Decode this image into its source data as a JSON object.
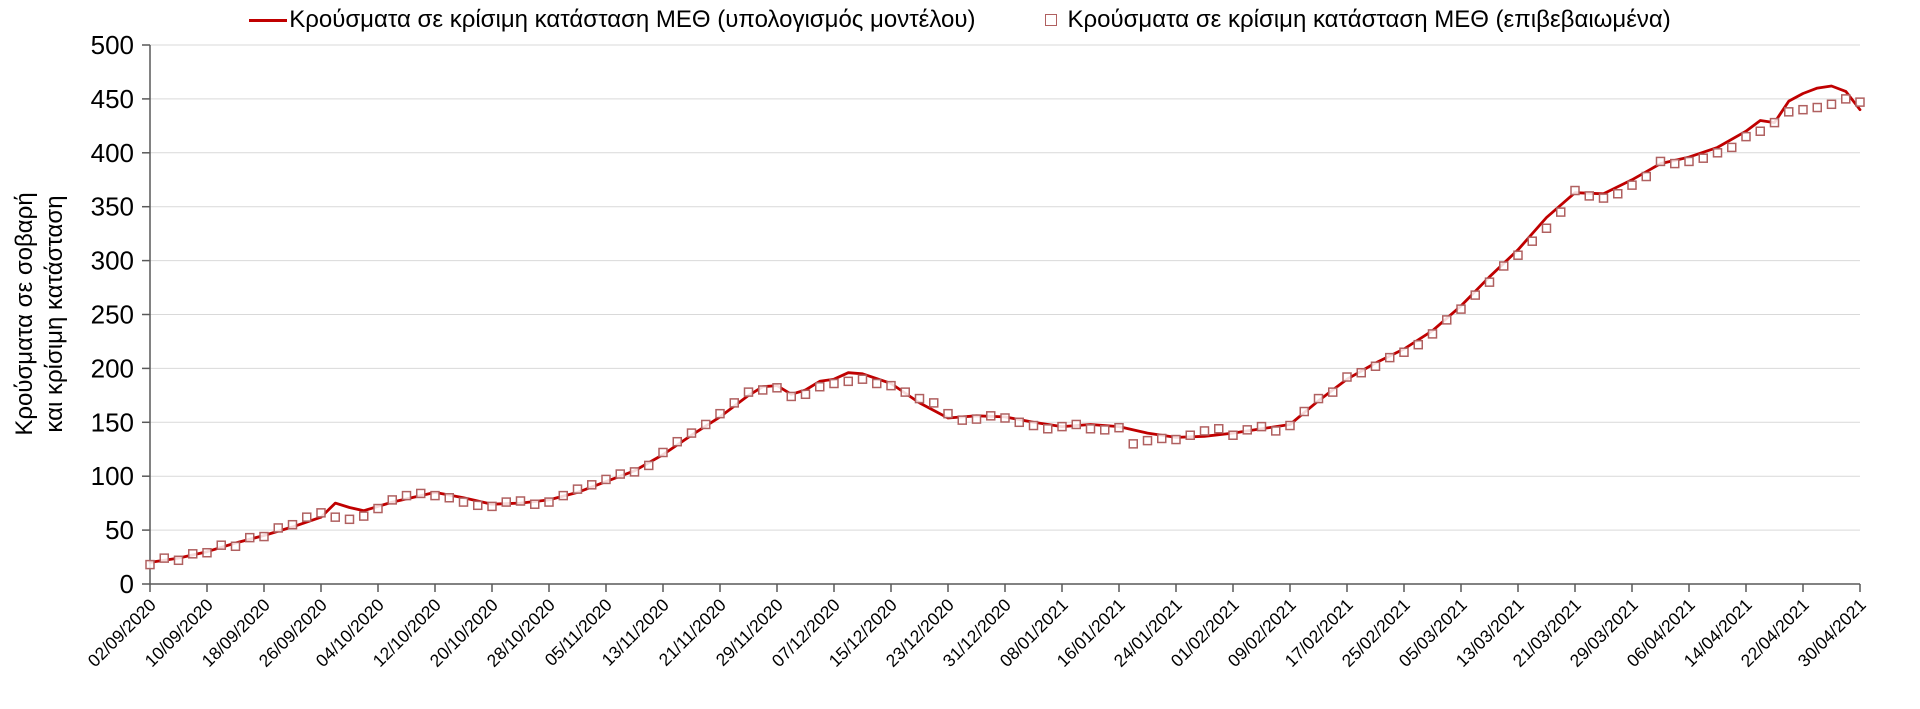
{
  "legend": {
    "model_label": "Κρούσματα σε κρίσιμη κατάσταση ΜΕΘ (υπολογισμός μοντέλου)",
    "confirmed_label": "Κρούσματα σε κρίσιμη κατάσταση ΜΕΘ (επιβεβαιωμένα)"
  },
  "y_axis": {
    "title_line1": "Κρούσματα σε σοβαρή",
    "title_line2": "και κρίσιμη κατάσταση",
    "min": 0,
    "max": 500,
    "step": 50
  },
  "colors": {
    "line": "#C00000",
    "marker": "#B06060",
    "grid": "#D9D9D9",
    "axis": "#595959",
    "text": "#000000"
  },
  "chart_data": {
    "type": "line",
    "title": "",
    "xlabel": "",
    "ylabel": "Κρούσματα σε σοβαρή και κρίσιμη κατάσταση",
    "ylim": [
      0,
      500
    ],
    "y_tick_step": 50,
    "grid": "horizontal",
    "legend_position": "top",
    "x_start_date": "02/09/2020",
    "x_end_date": "30/04/2021",
    "x_tick_interval_days": 8,
    "x_max_day": 240,
    "x_tick_labels": [
      "02/09/2020",
      "10/09/2020",
      "18/09/2020",
      "26/09/2020",
      "04/10/2020",
      "12/10/2020",
      "20/10/2020",
      "28/10/2020",
      "05/11/2020",
      "13/11/2020",
      "21/11/2020",
      "29/11/2020",
      "07/12/2020",
      "15/12/2020",
      "23/12/2020",
      "31/12/2020",
      "08/01/2021",
      "16/01/2021",
      "24/01/2021",
      "01/02/2021",
      "09/02/2021",
      "17/02/2021",
      "25/02/2021",
      "05/03/2021",
      "13/03/2021",
      "21/03/2021",
      "29/03/2021",
      "06/04/2021",
      "14/04/2021",
      "22/04/2021",
      "30/04/2021"
    ],
    "series": [
      {
        "name": "Κρούσματα σε κρίσιμη κατάσταση ΜΕΘ (υπολογισμός μοντέλου)",
        "style": "line",
        "color": "#C00000",
        "points": [
          [
            0,
            20
          ],
          [
            4,
            24
          ],
          [
            8,
            30
          ],
          [
            12,
            38
          ],
          [
            16,
            45
          ],
          [
            20,
            53
          ],
          [
            24,
            62
          ],
          [
            26,
            75
          ],
          [
            28,
            71
          ],
          [
            30,
            68
          ],
          [
            34,
            76
          ],
          [
            38,
            82
          ],
          [
            40,
            85
          ],
          [
            44,
            80
          ],
          [
            48,
            74
          ],
          [
            52,
            75
          ],
          [
            56,
            78
          ],
          [
            60,
            85
          ],
          [
            64,
            95
          ],
          [
            68,
            105
          ],
          [
            72,
            120
          ],
          [
            76,
            138
          ],
          [
            80,
            155
          ],
          [
            84,
            175
          ],
          [
            86,
            183
          ],
          [
            88,
            184
          ],
          [
            90,
            176
          ],
          [
            92,
            180
          ],
          [
            94,
            188
          ],
          [
            96,
            190
          ],
          [
            98,
            196
          ],
          [
            100,
            195
          ],
          [
            104,
            186
          ],
          [
            108,
            168
          ],
          [
            112,
            154
          ],
          [
            116,
            156
          ],
          [
            120,
            155
          ],
          [
            124,
            150
          ],
          [
            128,
            146
          ],
          [
            132,
            148
          ],
          [
            136,
            146
          ],
          [
            140,
            140
          ],
          [
            144,
            136
          ],
          [
            148,
            137
          ],
          [
            152,
            140
          ],
          [
            156,
            144
          ],
          [
            160,
            148
          ],
          [
            164,
            170
          ],
          [
            168,
            190
          ],
          [
            172,
            205
          ],
          [
            176,
            218
          ],
          [
            180,
            235
          ],
          [
            184,
            258
          ],
          [
            188,
            285
          ],
          [
            192,
            310
          ],
          [
            196,
            340
          ],
          [
            200,
            363
          ],
          [
            204,
            362
          ],
          [
            208,
            375
          ],
          [
            212,
            390
          ],
          [
            216,
            396
          ],
          [
            220,
            405
          ],
          [
            224,
            420
          ],
          [
            226,
            430
          ],
          [
            228,
            428
          ],
          [
            230,
            448
          ],
          [
            232,
            455
          ],
          [
            234,
            460
          ],
          [
            236,
            462
          ],
          [
            238,
            457
          ],
          [
            240,
            440
          ]
        ]
      },
      {
        "name": "Κρούσματα σε κρίσιμη κατάσταση ΜΕΘ (επιβεβαιωμένα)",
        "style": "scatter-square",
        "color": "#B06060",
        "points": [
          [
            0,
            18
          ],
          [
            2,
            24
          ],
          [
            4,
            22
          ],
          [
            6,
            28
          ],
          [
            8,
            29
          ],
          [
            10,
            36
          ],
          [
            12,
            35
          ],
          [
            14,
            43
          ],
          [
            16,
            44
          ],
          [
            18,
            52
          ],
          [
            20,
            55
          ],
          [
            22,
            62
          ],
          [
            24,
            66
          ],
          [
            26,
            62
          ],
          [
            28,
            60
          ],
          [
            30,
            63
          ],
          [
            32,
            70
          ],
          [
            34,
            78
          ],
          [
            36,
            82
          ],
          [
            38,
            84
          ],
          [
            40,
            82
          ],
          [
            42,
            80
          ],
          [
            44,
            76
          ],
          [
            46,
            73
          ],
          [
            48,
            72
          ],
          [
            50,
            76
          ],
          [
            52,
            77
          ],
          [
            54,
            74
          ],
          [
            56,
            76
          ],
          [
            58,
            82
          ],
          [
            60,
            88
          ],
          [
            62,
            92
          ],
          [
            64,
            97
          ],
          [
            66,
            102
          ],
          [
            68,
            104
          ],
          [
            70,
            110
          ],
          [
            72,
            122
          ],
          [
            74,
            132
          ],
          [
            76,
            140
          ],
          [
            78,
            148
          ],
          [
            80,
            158
          ],
          [
            82,
            168
          ],
          [
            84,
            178
          ],
          [
            86,
            180
          ],
          [
            88,
            182
          ],
          [
            90,
            174
          ],
          [
            92,
            176
          ],
          [
            94,
            183
          ],
          [
            96,
            186
          ],
          [
            98,
            188
          ],
          [
            100,
            190
          ],
          [
            102,
            186
          ],
          [
            104,
            184
          ],
          [
            106,
            178
          ],
          [
            108,
            172
          ],
          [
            110,
            168
          ],
          [
            112,
            158
          ],
          [
            114,
            152
          ],
          [
            116,
            153
          ],
          [
            118,
            156
          ],
          [
            120,
            154
          ],
          [
            122,
            150
          ],
          [
            124,
            147
          ],
          [
            126,
            144
          ],
          [
            128,
            146
          ],
          [
            130,
            148
          ],
          [
            132,
            144
          ],
          [
            134,
            143
          ],
          [
            136,
            145
          ],
          [
            138,
            130
          ],
          [
            140,
            133
          ],
          [
            142,
            135
          ],
          [
            144,
            134
          ],
          [
            146,
            138
          ],
          [
            148,
            142
          ],
          [
            150,
            144
          ],
          [
            152,
            138
          ],
          [
            154,
            143
          ],
          [
            156,
            146
          ],
          [
            158,
            142
          ],
          [
            160,
            147
          ],
          [
            162,
            160
          ],
          [
            164,
            172
          ],
          [
            166,
            178
          ],
          [
            168,
            192
          ],
          [
            170,
            196
          ],
          [
            172,
            202
          ],
          [
            174,
            210
          ],
          [
            176,
            215
          ],
          [
            178,
            222
          ],
          [
            180,
            232
          ],
          [
            182,
            245
          ],
          [
            184,
            255
          ],
          [
            186,
            268
          ],
          [
            188,
            280
          ],
          [
            190,
            295
          ],
          [
            192,
            305
          ],
          [
            194,
            318
          ],
          [
            196,
            330
          ],
          [
            198,
            345
          ],
          [
            200,
            365
          ],
          [
            202,
            360
          ],
          [
            204,
            358
          ],
          [
            206,
            362
          ],
          [
            208,
            370
          ],
          [
            210,
            378
          ],
          [
            212,
            392
          ],
          [
            214,
            390
          ],
          [
            216,
            392
          ],
          [
            218,
            395
          ],
          [
            220,
            400
          ],
          [
            222,
            405
          ],
          [
            224,
            415
          ],
          [
            226,
            420
          ],
          [
            228,
            428
          ],
          [
            230,
            438
          ],
          [
            232,
            440
          ],
          [
            234,
            442
          ],
          [
            236,
            445
          ],
          [
            238,
            450
          ],
          [
            240,
            447
          ]
        ]
      }
    ]
  }
}
